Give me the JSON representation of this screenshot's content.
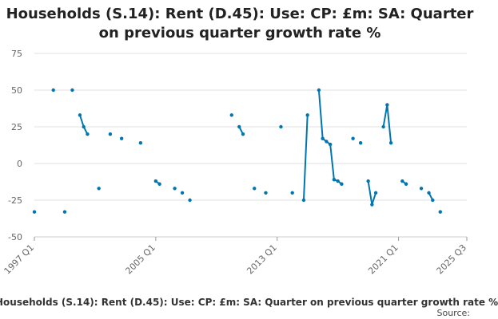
{
  "title_lines": [
    "Households (S.14): Rent (D.45): Use: CP: £m: SA: Quarter",
    "on previous quarter growth rate %"
  ],
  "footer": {
    "series_label": "Households (S.14): Rent (D.45): Use: CP: £m: SA: Quarter on previous quarter growth rate %",
    "source_label": "Source:"
  },
  "colors": {
    "line": "#0075b0",
    "grid": "#e0e0e0",
    "axis_text": "#666666"
  },
  "chart_data": {
    "type": "line",
    "title": "Households (S.14): Rent (D.45): Use: CP: £m: SA: Quarter on previous quarter growth rate %",
    "x_ticks": [
      "1997 Q1",
      "2005 Q1",
      "2013 Q1",
      "2021 Q1",
      "2025 Q3"
    ],
    "y_ticks": [
      75,
      50,
      25,
      0,
      -25,
      -50
    ],
    "ylim": [
      -50,
      75
    ],
    "xlim": [
      "1997 Q1",
      "2025 Q3"
    ],
    "grid": true,
    "legend": "none",
    "series": [
      {
        "points": [
          [
            "1997 Q1",
            -33
          ],
          [
            "1998 Q2",
            50
          ],
          [
            "1999 Q1",
            -33
          ],
          [
            "1999 Q3",
            50
          ],
          [
            "2000 Q1",
            33
          ],
          [
            "2000 Q2",
            25
          ],
          [
            "2000 Q3",
            20
          ],
          [
            "2001 Q2",
            -17
          ],
          [
            "2002 Q1",
            20
          ],
          [
            "2002 Q4",
            17
          ],
          [
            "2004 Q1",
            14
          ],
          [
            "2005 Q1",
            -12
          ],
          [
            "2005 Q2",
            -14
          ],
          [
            "2006 Q2",
            -17
          ],
          [
            "2006 Q4",
            -20
          ],
          [
            "2007 Q2",
            -25
          ],
          [
            "2010 Q1",
            33
          ],
          [
            "2010 Q3",
            25
          ],
          [
            "2010 Q4",
            20
          ],
          [
            "2011 Q3",
            -17
          ],
          [
            "2012 Q2",
            -20
          ],
          [
            "2013 Q2",
            25
          ],
          [
            "2014 Q1",
            -20
          ],
          [
            "2014 Q4",
            -25
          ],
          [
            "2015 Q1",
            33
          ],
          [
            "2015 Q4",
            50
          ],
          [
            "2016 Q1",
            17
          ],
          [
            "2016 Q2",
            15
          ],
          [
            "2016 Q3",
            13
          ],
          [
            "2016 Q4",
            -11
          ],
          [
            "2017 Q1",
            -12
          ],
          [
            "2017 Q2",
            -14
          ],
          [
            "2018 Q1",
            17
          ],
          [
            "2018 Q3",
            14
          ],
          [
            "2019 Q1",
            -12
          ],
          [
            "2019 Q2",
            -28
          ],
          [
            "2019 Q3",
            -20
          ],
          [
            "2020 Q1",
            25
          ],
          [
            "2020 Q2",
            40
          ],
          [
            "2020 Q3",
            14
          ],
          [
            "2021 Q2",
            -12
          ],
          [
            "2021 Q3",
            -14
          ],
          [
            "2022 Q3",
            -17
          ],
          [
            "2023 Q1",
            -20
          ],
          [
            "2023 Q2",
            -25
          ],
          [
            "2023 Q4",
            -33
          ]
        ]
      }
    ]
  }
}
